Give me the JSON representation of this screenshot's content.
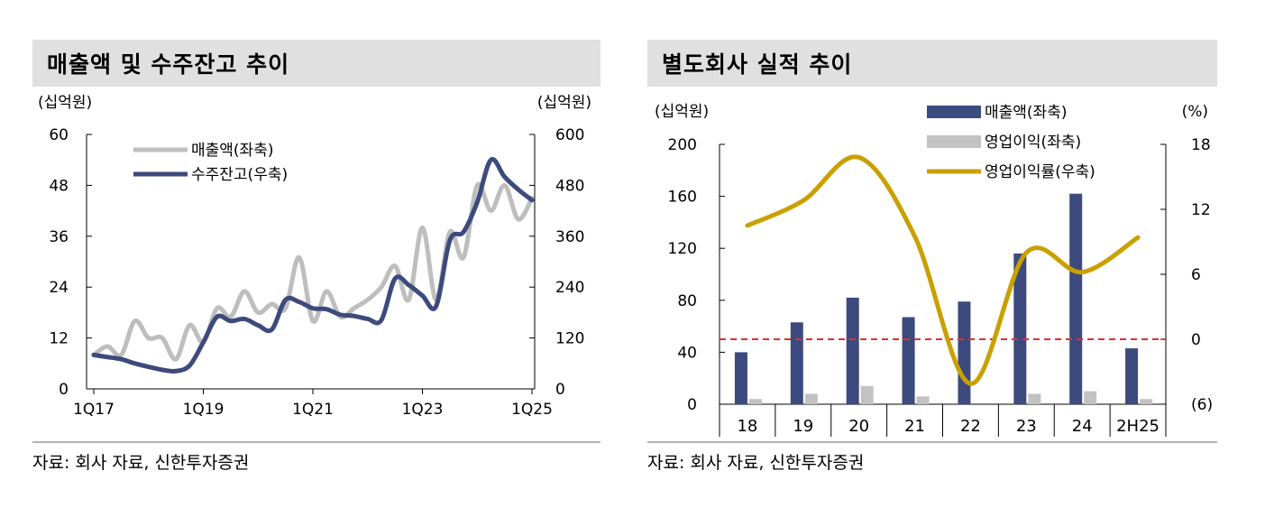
{
  "left_panel": {
    "title": "매출액 및 수주잔고 추이",
    "source": "자료: 회사 자료, 신한투자증권"
  },
  "right_panel": {
    "title": "별도회사 실적 추이",
    "source": "자료: 회사 자료, 신한투자증권"
  },
  "chart_data": [
    {
      "type": "line",
      "title": "매출액 및 수주잔고 추이",
      "unit_left": "(십억원)",
      "unit_right": "(십억원)",
      "x_tick_labels": [
        "1Q17",
        "1Q19",
        "1Q21",
        "1Q23",
        "1Q25"
      ],
      "y_left": {
        "ticks": [
          0,
          12,
          24,
          36,
          48,
          60
        ],
        "ylim": [
          0,
          60
        ]
      },
      "y_right": {
        "ticks": [
          0,
          120,
          240,
          360,
          480,
          600
        ],
        "ylim": [
          0,
          600
        ]
      },
      "legend_position": "top-left",
      "series": [
        {
          "name": "매출액(좌축)",
          "axis": "left",
          "color": "#bebebe",
          "values": [
            8,
            10,
            8,
            16,
            12,
            12,
            7,
            15,
            11,
            19,
            17,
            23,
            18,
            20,
            19,
            31,
            16,
            23,
            17,
            19,
            21,
            24,
            29,
            21,
            38,
            21,
            37,
            31,
            48,
            42,
            48,
            40,
            45
          ]
        },
        {
          "name": "수주잔고(우축)",
          "axis": "right",
          "color": "#3d4a7d",
          "values": [
            80,
            75,
            70,
            60,
            52,
            45,
            42,
            55,
            110,
            170,
            160,
            165,
            150,
            140,
            210,
            205,
            190,
            188,
            175,
            172,
            165,
            162,
            260,
            245,
            220,
            195,
            350,
            370,
            440,
            540,
            500,
            470,
            445
          ]
        }
      ]
    },
    {
      "type": "bar",
      "title": "별도회사 실적 추이",
      "unit_left": "(십억원)",
      "unit_right": "(%)",
      "categories": [
        "18",
        "19",
        "20",
        "21",
        "22",
        "23",
        "24",
        "2H25"
      ],
      "y_left": {
        "ticks": [
          0,
          40,
          80,
          120,
          160,
          200
        ],
        "ylim": [
          0,
          200
        ]
      },
      "y_right": {
        "ticks": [
          "(6)",
          "0",
          "6",
          "12",
          "18"
        ],
        "ylim": [
          -6,
          18
        ]
      },
      "reference_line": {
        "axis": "right",
        "value": 0,
        "color": "#e03030"
      },
      "legend_position": "top-right",
      "series": [
        {
          "name": "매출액(좌축)",
          "axis": "left",
          "color": "#3d4a7d",
          "values": [
            40,
            63,
            82,
            67,
            79,
            116,
            162,
            43
          ]
        },
        {
          "name": "영업이익(좌축)",
          "axis": "left",
          "color": "#c2c2c2",
          "values": [
            4,
            8,
            14,
            6,
            0,
            8,
            10,
            4
          ]
        },
        {
          "name": "영업이익률(우축)",
          "axis": "right",
          "type": "line",
          "color": "#c9a000",
          "values": [
            10.5,
            12.8,
            16.8,
            9.5,
            -4.1,
            8.0,
            6.2,
            9.4
          ]
        }
      ]
    }
  ]
}
